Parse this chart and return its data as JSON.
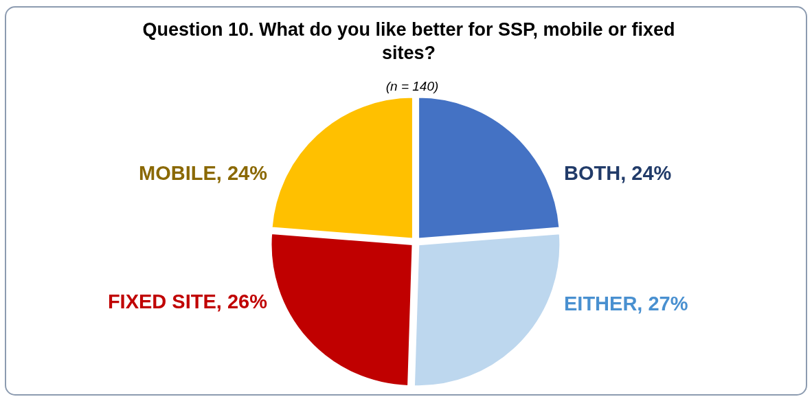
{
  "chart_data": {
    "type": "pie",
    "title": "Question 10. What do you like better for SSP, mobile or fixed sites?",
    "subtitle": "(n = 140)",
    "categories": [
      "BOTH",
      "EITHER",
      "FIXED SITE",
      "MOBILE"
    ],
    "values": [
      24,
      27,
      26,
      24
    ],
    "colors": [
      "#4472c4",
      "#bdd7ee",
      "#c00000",
      "#ffc000"
    ],
    "value_labels": [
      ", 24%",
      ", 27%",
      ", 26%",
      ", 24%"
    ],
    "legend": false
  }
}
